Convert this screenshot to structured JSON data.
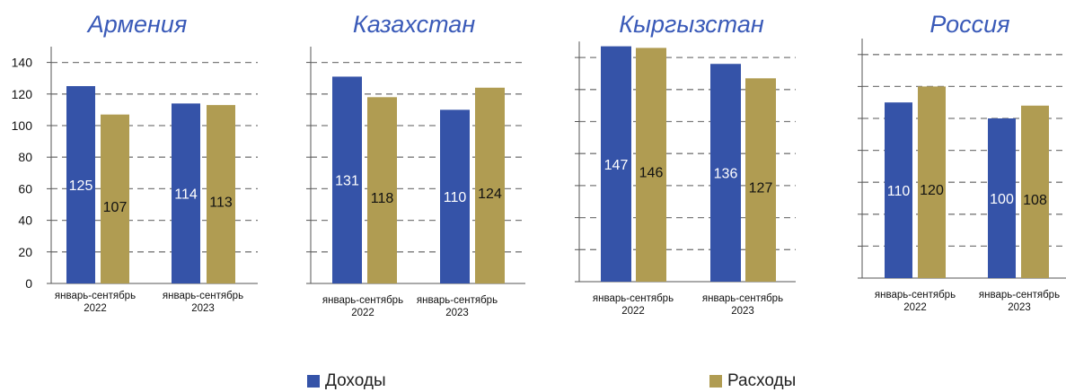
{
  "colors": {
    "income": "#3553a8",
    "expense": "#b09c52",
    "title": "#3a5ab8",
    "grid": "#7a7a7a",
    "axis": "#555555"
  },
  "legend": {
    "income_label": "Доходы",
    "expense_label": "Расходы"
  },
  "chart_data": [
    {
      "type": "bar",
      "title": "Армения",
      "categories": [
        "январь-сентябрь\n2022",
        "январь-сентябрь\n2023"
      ],
      "series": [
        {
          "name": "Доходы",
          "values": [
            125,
            114
          ]
        },
        {
          "name": "Расходы",
          "values": [
            107,
            113
          ]
        }
      ],
      "ylim": [
        0,
        150
      ],
      "yticks": [
        "0",
        "20",
        "40",
        "60",
        "80",
        "100",
        "120",
        "140"
      ],
      "grid": true
    },
    {
      "type": "bar",
      "title": "Казахстан",
      "categories": [
        "январь-сентябрь\n2022",
        "январь-сентябрь\n2023"
      ],
      "series": [
        {
          "name": "Доходы",
          "values": [
            131,
            110
          ]
        },
        {
          "name": "Расходы",
          "values": [
            118,
            124
          ]
        }
      ],
      "ylim": [
        0,
        150
      ],
      "grid": true
    },
    {
      "type": "bar",
      "title": "Кыргызстан",
      "categories": [
        "январь-сентябрь\n2022",
        "январь-сентябрь\n2023"
      ],
      "series": [
        {
          "name": "Доходы",
          "values": [
            147,
            136
          ]
        },
        {
          "name": "Расходы",
          "values": [
            146,
            127
          ]
        }
      ],
      "ylim": [
        0,
        150
      ],
      "grid": true
    },
    {
      "type": "bar",
      "title": "Россия",
      "categories": [
        "январь-сентябрь\n2022",
        "январь-сентябрь\n2023"
      ],
      "series": [
        {
          "name": "Доходы",
          "values": [
            110,
            100
          ]
        },
        {
          "name": "Расходы",
          "values": [
            120,
            108
          ]
        }
      ],
      "ylim": [
        0,
        150
      ],
      "grid": true
    }
  ]
}
